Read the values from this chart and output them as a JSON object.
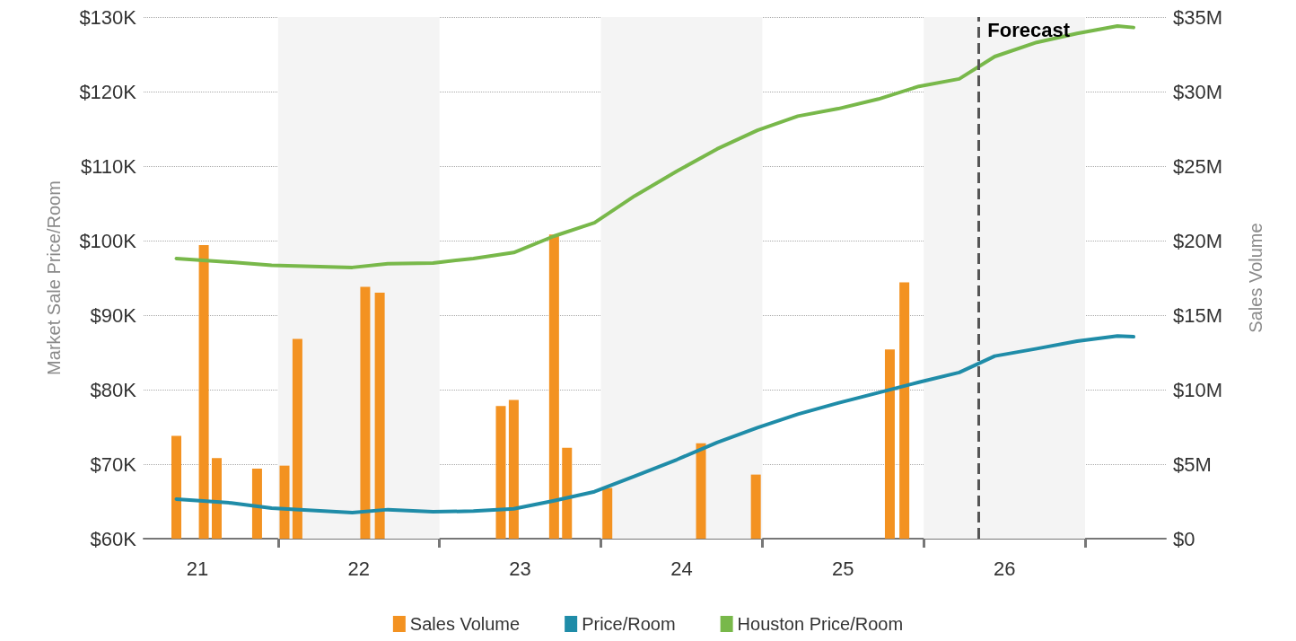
{
  "chart_data": {
    "type": "bar",
    "ylabel": "Market Sale Price/Room",
    "y2label": "Sales Volume",
    "xlim": [
      20.667,
      27.0
    ],
    "xticks": [
      {
        "value": 21,
        "label": "21"
      },
      {
        "value": 22,
        "label": "22"
      },
      {
        "value": 23,
        "label": "23"
      },
      {
        "value": 24,
        "label": "24"
      },
      {
        "value": 25,
        "label": "25"
      },
      {
        "value": 26,
        "label": "26"
      },
      {
        "value": 21.5,
        "label": null
      },
      {
        "value": 22.5,
        "label": null
      },
      {
        "value": 23.5,
        "label": null
      },
      {
        "value": 24.5,
        "label": null
      },
      {
        "value": 25.5,
        "label": null
      },
      {
        "value": 26.5,
        "label": null
      }
    ],
    "ylim": [
      60,
      130
    ],
    "yticks": [
      {
        "value": 60,
        "label": "$60K"
      },
      {
        "value": 70,
        "label": "$70K"
      },
      {
        "value": 80,
        "label": "$80K"
      },
      {
        "value": 90,
        "label": "$90K"
      },
      {
        "value": 100,
        "label": "$100K"
      },
      {
        "value": 110,
        "label": "$110K"
      },
      {
        "value": 120,
        "label": "$120K"
      },
      {
        "value": 130,
        "label": "$130K"
      }
    ],
    "y2lim": [
      0,
      35
    ],
    "y2ticks": [
      {
        "value": 0,
        "label": "$0"
      },
      {
        "value": 5,
        "label": "$5M"
      },
      {
        "value": 10,
        "label": "$10M"
      },
      {
        "value": 15,
        "label": "$15M"
      },
      {
        "value": 20,
        "label": "$20M"
      },
      {
        "value": 25,
        "label": "$25M"
      },
      {
        "value": 30,
        "label": "$30M"
      },
      {
        "value": 35,
        "label": "$35M"
      }
    ],
    "grid": "y",
    "legend": "bottom",
    "marker": "none",
    "line_style": "solid",
    "series": [
      {
        "name": "Sales Volume",
        "axis": "y2",
        "color": "#f39221",
        "x": [
          20.87,
          21.04,
          21.12,
          21.37,
          21.54,
          21.62,
          22.04,
          22.13,
          22.88,
          22.96,
          23.21,
          23.29,
          23.54,
          24.12,
          24.46,
          25.29,
          25.38
        ],
        "values": [
          6.9,
          19.7,
          5.4,
          4.7,
          4.9,
          13.4,
          16.9,
          16.5,
          8.9,
          9.3,
          20.4,
          6.1,
          3.4,
          6.4,
          4.3,
          12.7,
          17.2
        ]
      },
      {
        "name": "Price/Room",
        "type": "line",
        "color": "#1f8ca8",
        "x": [
          20.87,
          21.21,
          21.46,
          21.96,
          22.18,
          22.46,
          22.71,
          22.96,
          23.21,
          23.46,
          23.71,
          23.97,
          24.22,
          24.47,
          24.72,
          24.97,
          25.22,
          25.47,
          25.72,
          25.94,
          26.2,
          26.45,
          26.7,
          26.8
        ],
        "values": [
          65.3,
          64.8,
          64.1,
          63.5,
          63.9,
          63.6,
          63.7,
          64.0,
          65.1,
          66.3,
          68.4,
          70.6,
          72.9,
          74.9,
          76.7,
          78.2,
          79.6,
          81.0,
          82.3,
          84.5,
          85.5,
          86.5,
          87.2,
          87.1
        ]
      },
      {
        "name": "Houston Price/Room",
        "type": "line",
        "color": "#78b84a",
        "x": [
          20.87,
          21.21,
          21.46,
          21.96,
          22.18,
          22.46,
          22.71,
          22.96,
          23.21,
          23.46,
          23.71,
          23.97,
          24.22,
          24.47,
          24.72,
          24.97,
          25.22,
          25.47,
          25.72,
          25.94,
          26.2,
          26.45,
          26.7,
          26.8
        ],
        "values": [
          97.6,
          97.1,
          96.7,
          96.4,
          96.9,
          97.0,
          97.6,
          98.4,
          100.6,
          102.4,
          106.0,
          109.3,
          112.3,
          114.8,
          116.7,
          117.7,
          119.0,
          120.7,
          121.7,
          124.7,
          126.6,
          127.8,
          128.8,
          128.6
        ]
      }
    ],
    "ref_lines": [
      {
        "axis": "x",
        "value": 25.84,
        "label": "Forecast",
        "color": "#555555",
        "line_style": "dashed"
      }
    ],
    "bands": [
      {
        "axis": "x",
        "from": 21.5,
        "to": 22.5,
        "color": "#f4f4f4"
      },
      {
        "axis": "x",
        "from": 23.5,
        "to": 24.5,
        "color": "#f4f4f4"
      },
      {
        "axis": "x",
        "from": 25.5,
        "to": 26.5,
        "color": "#f4f4f4"
      }
    ]
  }
}
